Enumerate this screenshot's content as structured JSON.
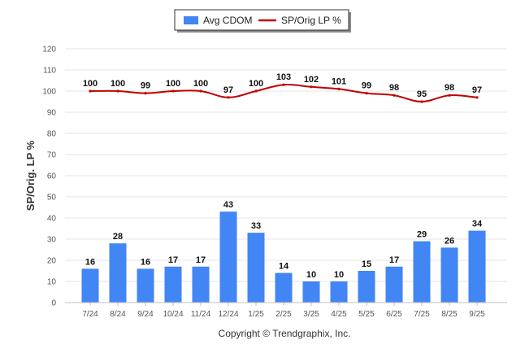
{
  "chart_data": {
    "type": "bar",
    "title": "",
    "xlabel": "",
    "ylabel": "SP/Orig. LP %",
    "ylim": [
      0,
      120
    ],
    "yticks": [
      0,
      10,
      20,
      30,
      40,
      50,
      60,
      70,
      80,
      90,
      100,
      110,
      120
    ],
    "grid": true,
    "legend_position": "top-center",
    "categories": [
      "7/24",
      "8/24",
      "9/24",
      "10/24",
      "11/24",
      "12/24",
      "1/25",
      "2/25",
      "3/25",
      "4/25",
      "5/25",
      "6/25",
      "7/25",
      "8/25",
      "9/25"
    ],
    "series": [
      {
        "name": "Avg CDOM",
        "type": "bar",
        "color": "#4285f4",
        "values": [
          16,
          28,
          16,
          17,
          17,
          43,
          33,
          14,
          10,
          10,
          15,
          17,
          29,
          26,
          34
        ]
      },
      {
        "name": "SP/Orig LP %",
        "type": "line",
        "color": "#c00000",
        "values": [
          100,
          100,
          99,
          100,
          100,
          97,
          100,
          103,
          102,
          101,
          99,
          98,
          95,
          98,
          97
        ]
      }
    ]
  },
  "footer": {
    "copyright": "Copyright © Trendgraphix, Inc."
  }
}
